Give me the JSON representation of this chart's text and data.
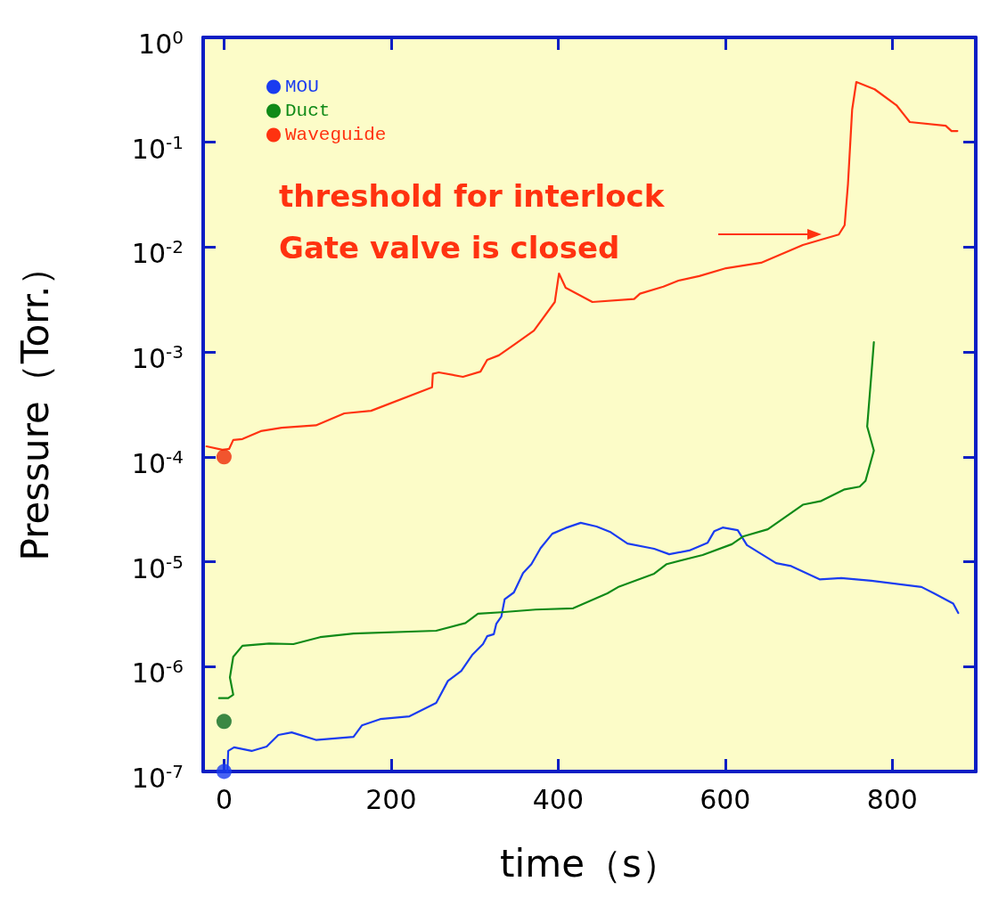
{
  "chart_data": {
    "type": "line",
    "xlabel": "time（s）",
    "ylabel": "Pressure（Torr.）",
    "log": "y",
    "grid": false,
    "legend": "top left",
    "marker": "none",
    "line_style": "solid",
    "xlim": [
      -25,
      900
    ],
    "xticks": [
      0,
      200,
      400,
      600,
      800
    ],
    "ylim": [
      1e-07,
      1
    ],
    "yticks": [
      {
        "value": 1e-07,
        "label": "10$^{-7}$"
      },
      {
        "value": 1e-06,
        "label": "10$^{-6}$"
      },
      {
        "value": 1e-05,
        "label": "10$^{-5}$"
      },
      {
        "value": 0.0001,
        "label": "10$^{-4}$"
      },
      {
        "value": 0.001,
        "label": "10$^{-3}$"
      },
      {
        "value": 0.01,
        "label": "10$^{-2}$"
      },
      {
        "value": 0.1,
        "label": "10$^{-1}$"
      },
      {
        "value": 1,
        "label": "10$^{0}$"
      }
    ],
    "series": [
      {
        "name": "MOU",
        "color": "#1a3cf0",
        "x": [
          4,
          5,
          12,
          33,
          51,
          65,
          81,
          110,
          155,
          165,
          187,
          222,
          254,
          268,
          284,
          297,
          310,
          315,
          323,
          326,
          332,
          336,
          347,
          358,
          368,
          379,
          393,
          409,
          427,
          446,
          462,
          483,
          515,
          533,
          557,
          579,
          587,
          597,
          615,
          626,
          661,
          679,
          713,
          739,
          775,
          835,
          850,
          873,
          879
        ],
        "values": [
          1e-07,
          1.57e-07,
          1.7e-07,
          1.57e-07,
          1.73e-07,
          2.23e-07,
          2.36e-07,
          2e-07,
          2.14e-07,
          2.75e-07,
          3.16e-07,
          3.36e-07,
          4.5e-07,
          7.3e-07,
          9.1e-07,
          1.29e-06,
          1.64e-06,
          1.95e-06,
          2.04e-06,
          2.57e-06,
          3e-06,
          4.4e-06,
          5.1e-06,
          7.8e-06,
          9.5e-06,
          1.35e-05,
          1.85e-05,
          2.1e-05,
          2.35e-05,
          2.17e-05,
          1.93e-05,
          1.49e-05,
          1.33e-05,
          1.18e-05,
          1.28e-05,
          1.52e-05,
          1.96e-05,
          2.12e-05,
          2e-05,
          1.44e-05,
          9.7e-06,
          9.1e-06,
          6.8e-06,
          7e-06,
          6.6e-06,
          5.75e-06,
          5e-06,
          4e-06,
          3.25e-06
        ]
      },
      {
        "name": "Duct",
        "color": "#108a18",
        "x": [
          -6,
          5,
          11,
          7,
          11,
          22,
          54,
          83,
          115,
          155,
          254,
          289,
          304,
          332,
          373,
          418,
          459,
          473,
          515,
          530,
          573,
          608,
          622,
          651,
          693,
          715,
          743,
          761,
          768,
          778,
          770,
          775,
          778
        ],
        "values": [
          5e-07,
          5e-07,
          5.4e-07,
          7.9e-07,
          1.24e-06,
          1.58e-06,
          1.66e-06,
          1.64e-06,
          1.91e-06,
          2.07e-06,
          2.2e-06,
          2.6e-06,
          3.2e-06,
          3.3e-06,
          3.5e-06,
          3.6e-06,
          5e-06,
          5.8e-06,
          7.7e-06,
          9.5e-06,
          1.16e-05,
          1.47e-05,
          1.75e-05,
          2.04e-05,
          3.5e-05,
          3.8e-05,
          4.9e-05,
          5.2e-05,
          5.9e-05,
          0.000115,
          0.000195,
          0.00061,
          0.00124
        ]
      },
      {
        "name": "Waveguide",
        "color": "#ff3210",
        "x": [
          -21,
          -2,
          6,
          11,
          22,
          44,
          69,
          110,
          144,
          176,
          249,
          250,
          257,
          286,
          307,
          315,
          329,
          347,
          371,
          396,
          401,
          409,
          441,
          491,
          498,
          526,
          544,
          569,
          601,
          643,
          693,
          736,
          743,
          747,
          752,
          757,
          779,
          805,
          821,
          864,
          871,
          878
        ],
        "values": [
          0.000126,
          0.000117,
          0.000119,
          0.000145,
          0.000148,
          0.000176,
          0.00019,
          0.0002,
          0.00026,
          0.000275,
          0.00046,
          0.00062,
          0.00064,
          0.00058,
          0.00065,
          0.00084,
          0.00093,
          0.00117,
          0.0016,
          0.003,
          0.0056,
          0.0041,
          0.003,
          0.0032,
          0.0036,
          0.0042,
          0.0048,
          0.0053,
          0.0063,
          0.0071,
          0.0105,
          0.0132,
          0.0162,
          0.04,
          0.205,
          0.376,
          0.32,
          0.226,
          0.156,
          0.144,
          0.128,
          0.128
        ]
      },
      {
        "type": "scatter",
        "marker": "circle",
        "color": "#1a3cf0",
        "x": [
          0
        ],
        "values": [
          1e-07
        ]
      },
      {
        "type": "scatter",
        "marker": "circle",
        "color": "#0a6a22",
        "x": [
          0
        ],
        "values": [
          3e-07
        ]
      },
      {
        "type": "scatter",
        "marker": "circle",
        "color": "#ee2a08",
        "x": [
          0
        ],
        "values": [
          0.0001
        ]
      }
    ],
    "annotations": [
      "threshold for interlock\nGate valve is closed"
    ]
  }
}
